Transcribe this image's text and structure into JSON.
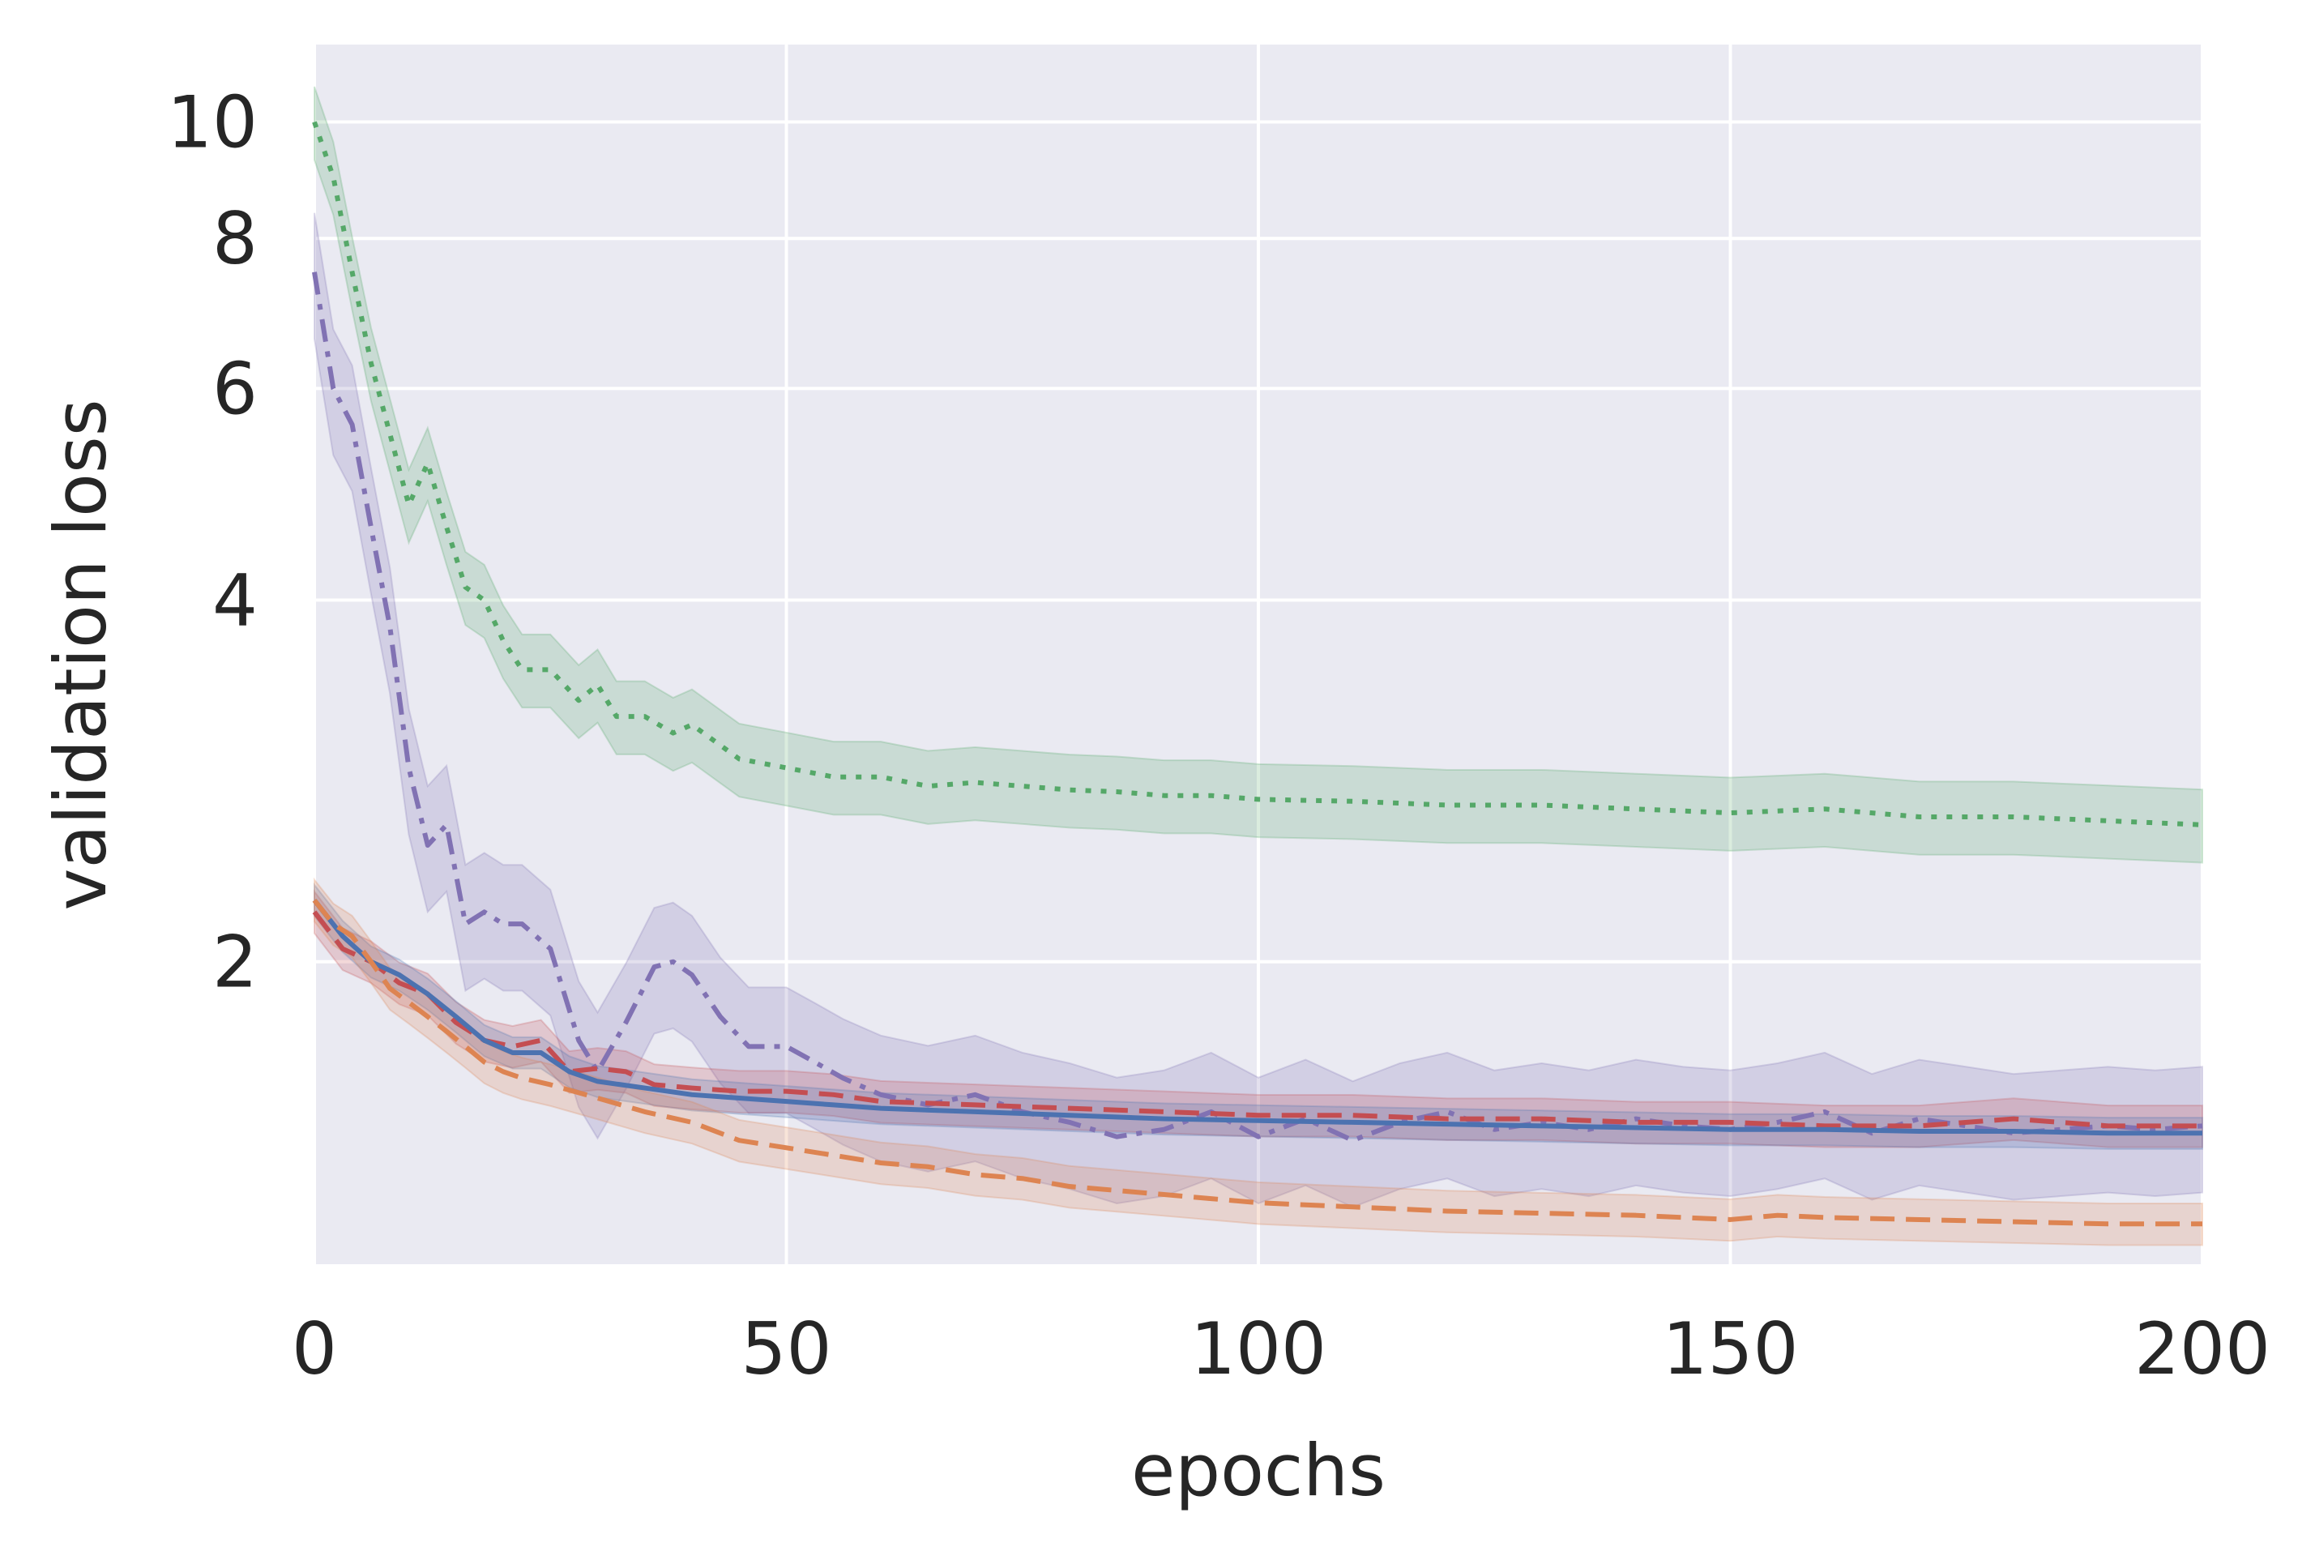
{
  "chart_data": {
    "type": "line",
    "title": "",
    "xlabel": "epochs",
    "ylabel": "validation loss",
    "xlim": [
      0,
      200
    ],
    "ylim": [
      1.12,
      11.6
    ],
    "yscale": "log",
    "grid": true,
    "legend": "none",
    "xticks": [
      0,
      50,
      100,
      150,
      200
    ],
    "xtick_labels": [
      "0",
      "50",
      "100",
      "150",
      "200"
    ],
    "yticks": [
      2,
      4,
      6,
      8,
      10
    ],
    "ytick_labels": [
      "2",
      "4",
      "6",
      "8",
      "10"
    ],
    "colors": {
      "background": "#EAEAF2",
      "grid": "#FFFFFF",
      "blue": "#4C72B0",
      "orange": "#DD8452",
      "green": "#55A868",
      "red": "#C44E52",
      "purple": "#8172B3"
    },
    "series": [
      {
        "name": "green-dotted",
        "color": "#55A868",
        "style": "dotted",
        "band": 0.07,
        "x": [
          0,
          2,
          4,
          6,
          8,
          10,
          12,
          14,
          16,
          18,
          20,
          22,
          25,
          28,
          30,
          32,
          35,
          38,
          40,
          45,
          50,
          55,
          60,
          65,
          70,
          75,
          80,
          85,
          90,
          95,
          100,
          110,
          120,
          130,
          140,
          150,
          160,
          170,
          180,
          190,
          200
        ],
        "values": [
          10.0,
          9.0,
          7.5,
          6.3,
          5.5,
          4.8,
          5.2,
          4.6,
          4.1,
          4.0,
          3.7,
          3.5,
          3.5,
          3.3,
          3.4,
          3.2,
          3.2,
          3.1,
          3.15,
          2.95,
          2.9,
          2.85,
          2.85,
          2.8,
          2.82,
          2.8,
          2.78,
          2.77,
          2.75,
          2.75,
          2.73,
          2.72,
          2.7,
          2.7,
          2.68,
          2.66,
          2.68,
          2.64,
          2.64,
          2.62,
          2.6
        ]
      },
      {
        "name": "purple-dashdot",
        "color": "#8172B3",
        "style": "dashdot",
        "band": 0.12,
        "x": [
          0,
          2,
          4,
          6,
          8,
          10,
          12,
          14,
          16,
          18,
          20,
          22,
          25,
          28,
          30,
          33,
          36,
          38,
          40,
          43,
          46,
          50,
          53,
          56,
          60,
          65,
          70,
          75,
          80,
          85,
          90,
          95,
          100,
          105,
          110,
          115,
          120,
          125,
          130,
          135,
          140,
          145,
          150,
          155,
          160,
          165,
          170,
          175,
          180,
          185,
          190,
          195,
          200
        ],
        "values": [
          7.5,
          6.0,
          5.6,
          4.6,
          3.8,
          2.9,
          2.5,
          2.6,
          2.15,
          2.2,
          2.15,
          2.15,
          2.05,
          1.72,
          1.62,
          1.78,
          1.98,
          2.0,
          1.95,
          1.8,
          1.7,
          1.7,
          1.65,
          1.6,
          1.55,
          1.52,
          1.55,
          1.5,
          1.47,
          1.43,
          1.45,
          1.5,
          1.43,
          1.48,
          1.42,
          1.47,
          1.5,
          1.45,
          1.47,
          1.45,
          1.48,
          1.46,
          1.45,
          1.47,
          1.5,
          1.44,
          1.48,
          1.46,
          1.44,
          1.45,
          1.46,
          1.45,
          1.46
        ]
      },
      {
        "name": "red-dashed",
        "color": "#C44E52",
        "style": "dashed",
        "band": 0.04,
        "x": [
          0,
          3,
          6,
          9,
          12,
          15,
          18,
          21,
          24,
          27,
          30,
          33,
          36,
          40,
          45,
          50,
          55,
          60,
          70,
          80,
          90,
          100,
          110,
          120,
          130,
          140,
          150,
          160,
          170,
          180,
          190,
          200
        ],
        "values": [
          2.2,
          2.05,
          2.0,
          1.92,
          1.88,
          1.78,
          1.72,
          1.7,
          1.72,
          1.62,
          1.63,
          1.62,
          1.58,
          1.57,
          1.56,
          1.56,
          1.55,
          1.53,
          1.52,
          1.51,
          1.5,
          1.49,
          1.49,
          1.48,
          1.48,
          1.47,
          1.47,
          1.46,
          1.46,
          1.48,
          1.46,
          1.46
        ]
      },
      {
        "name": "blue-solid",
        "color": "#4C72B0",
        "style": "solid",
        "band": 0.03,
        "x": [
          0,
          3,
          6,
          9,
          12,
          15,
          18,
          21,
          24,
          27,
          30,
          35,
          40,
          45,
          50,
          55,
          60,
          70,
          80,
          90,
          100,
          110,
          120,
          130,
          140,
          150,
          160,
          170,
          180,
          190,
          200
        ],
        "values": [
          2.25,
          2.1,
          2.0,
          1.95,
          1.88,
          1.8,
          1.72,
          1.68,
          1.68,
          1.62,
          1.59,
          1.57,
          1.55,
          1.54,
          1.53,
          1.52,
          1.51,
          1.5,
          1.49,
          1.48,
          1.475,
          1.47,
          1.465,
          1.46,
          1.455,
          1.45,
          1.45,
          1.445,
          1.445,
          1.44,
          1.44
        ]
      },
      {
        "name": "orange-dashed",
        "color": "#DD8452",
        "style": "dashed",
        "band": 0.04,
        "x": [
          0,
          2,
          4,
          6,
          8,
          10,
          12,
          14,
          16,
          18,
          20,
          22,
          25,
          30,
          35,
          40,
          45,
          50,
          55,
          60,
          65,
          70,
          75,
          80,
          85,
          90,
          95,
          100,
          110,
          120,
          130,
          140,
          150,
          155,
          160,
          170,
          180,
          190,
          200
        ],
        "values": [
          2.25,
          2.15,
          2.1,
          2.0,
          1.9,
          1.85,
          1.8,
          1.75,
          1.7,
          1.65,
          1.62,
          1.6,
          1.58,
          1.54,
          1.5,
          1.47,
          1.42,
          1.4,
          1.38,
          1.36,
          1.35,
          1.33,
          1.32,
          1.3,
          1.29,
          1.28,
          1.27,
          1.26,
          1.25,
          1.24,
          1.235,
          1.23,
          1.22,
          1.23,
          1.225,
          1.22,
          1.215,
          1.21,
          1.21
        ]
      }
    ]
  }
}
